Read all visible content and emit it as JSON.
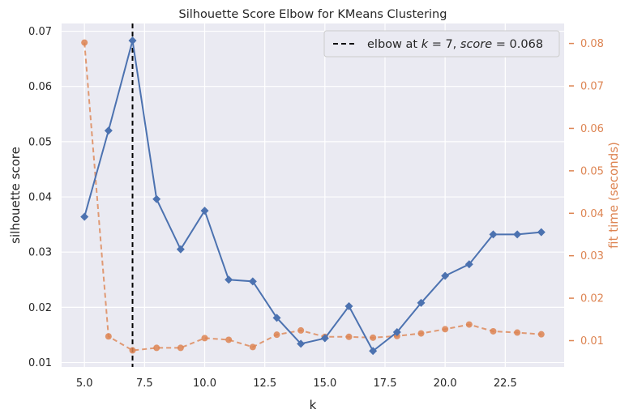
{
  "chart_data": {
    "type": "line",
    "title": "Silhouette Score Elbow for KMeans Clustering",
    "xlabel": "k",
    "ylabel": "silhouette score",
    "y2label": "fit time (seconds)",
    "xlim": [
      4.05,
      24.95
    ],
    "ylim": [
      0.0092,
      0.0714
    ],
    "y2lim": [
      0.0038,
      0.0847
    ],
    "x_ticks": [
      5.0,
      7.5,
      10.0,
      12.5,
      15.0,
      17.5,
      20.0,
      22.5
    ],
    "x_tick_labels": [
      "5.0",
      "7.5",
      "10.0",
      "12.5",
      "15.0",
      "17.5",
      "20.0",
      "22.5"
    ],
    "y_ticks": [
      0.01,
      0.02,
      0.03,
      0.04,
      0.05,
      0.06,
      0.07
    ],
    "y_tick_labels": [
      "0.01",
      "0.02",
      "0.03",
      "0.04",
      "0.05",
      "0.06",
      "0.07"
    ],
    "y2_ticks": [
      0.01,
      0.02,
      0.03,
      0.04,
      0.05,
      0.06,
      0.07,
      0.08
    ],
    "y2_tick_labels": [
      "0.01",
      "0.02",
      "0.03",
      "0.04",
      "0.05",
      "0.06",
      "0.07",
      "0.08"
    ],
    "grid": true,
    "legend_position": "top-right",
    "elbow": {
      "k": 7,
      "score": 0.068,
      "legend_prefix": "elbow at ",
      "legend_k_sym": "k",
      "legend_eq1": " = 7, ",
      "legend_score_sym": "score",
      "legend_eq2": " = 0.068"
    },
    "x": [
      5,
      6,
      7,
      8,
      9,
      10,
      11,
      12,
      13,
      14,
      15,
      16,
      17,
      18,
      19,
      20,
      21,
      22,
      23,
      24
    ],
    "series": [
      {
        "axis": "left",
        "color": "#4c72b0",
        "marker": "diamond",
        "style": "solid",
        "values": [
          0.0364,
          0.052,
          0.0683,
          0.0396,
          0.0305,
          0.0375,
          0.025,
          0.0247,
          0.0181,
          0.0134,
          0.0144,
          0.0202,
          0.0121,
          0.0155,
          0.0208,
          0.0257,
          0.0278,
          0.0332,
          0.0332,
          0.0336
        ]
      },
      {
        "axis": "right",
        "color": "#dd8452",
        "marker": "circle",
        "style": "dashed",
        "values": [
          0.0802,
          0.011,
          0.0077,
          0.0083,
          0.0083,
          0.0106,
          0.0102,
          0.0085,
          0.0114,
          0.0124,
          0.0109,
          0.0109,
          0.0107,
          0.0111,
          0.0117,
          0.0127,
          0.0138,
          0.0122,
          0.0119,
          0.0115
        ]
      }
    ],
    "colors": {
      "background": "#eaeaf2",
      "grid": "#ffffff",
      "score": "#4c72b0",
      "fit_time": "#dd8452",
      "elbow_line": "#000000"
    }
  }
}
